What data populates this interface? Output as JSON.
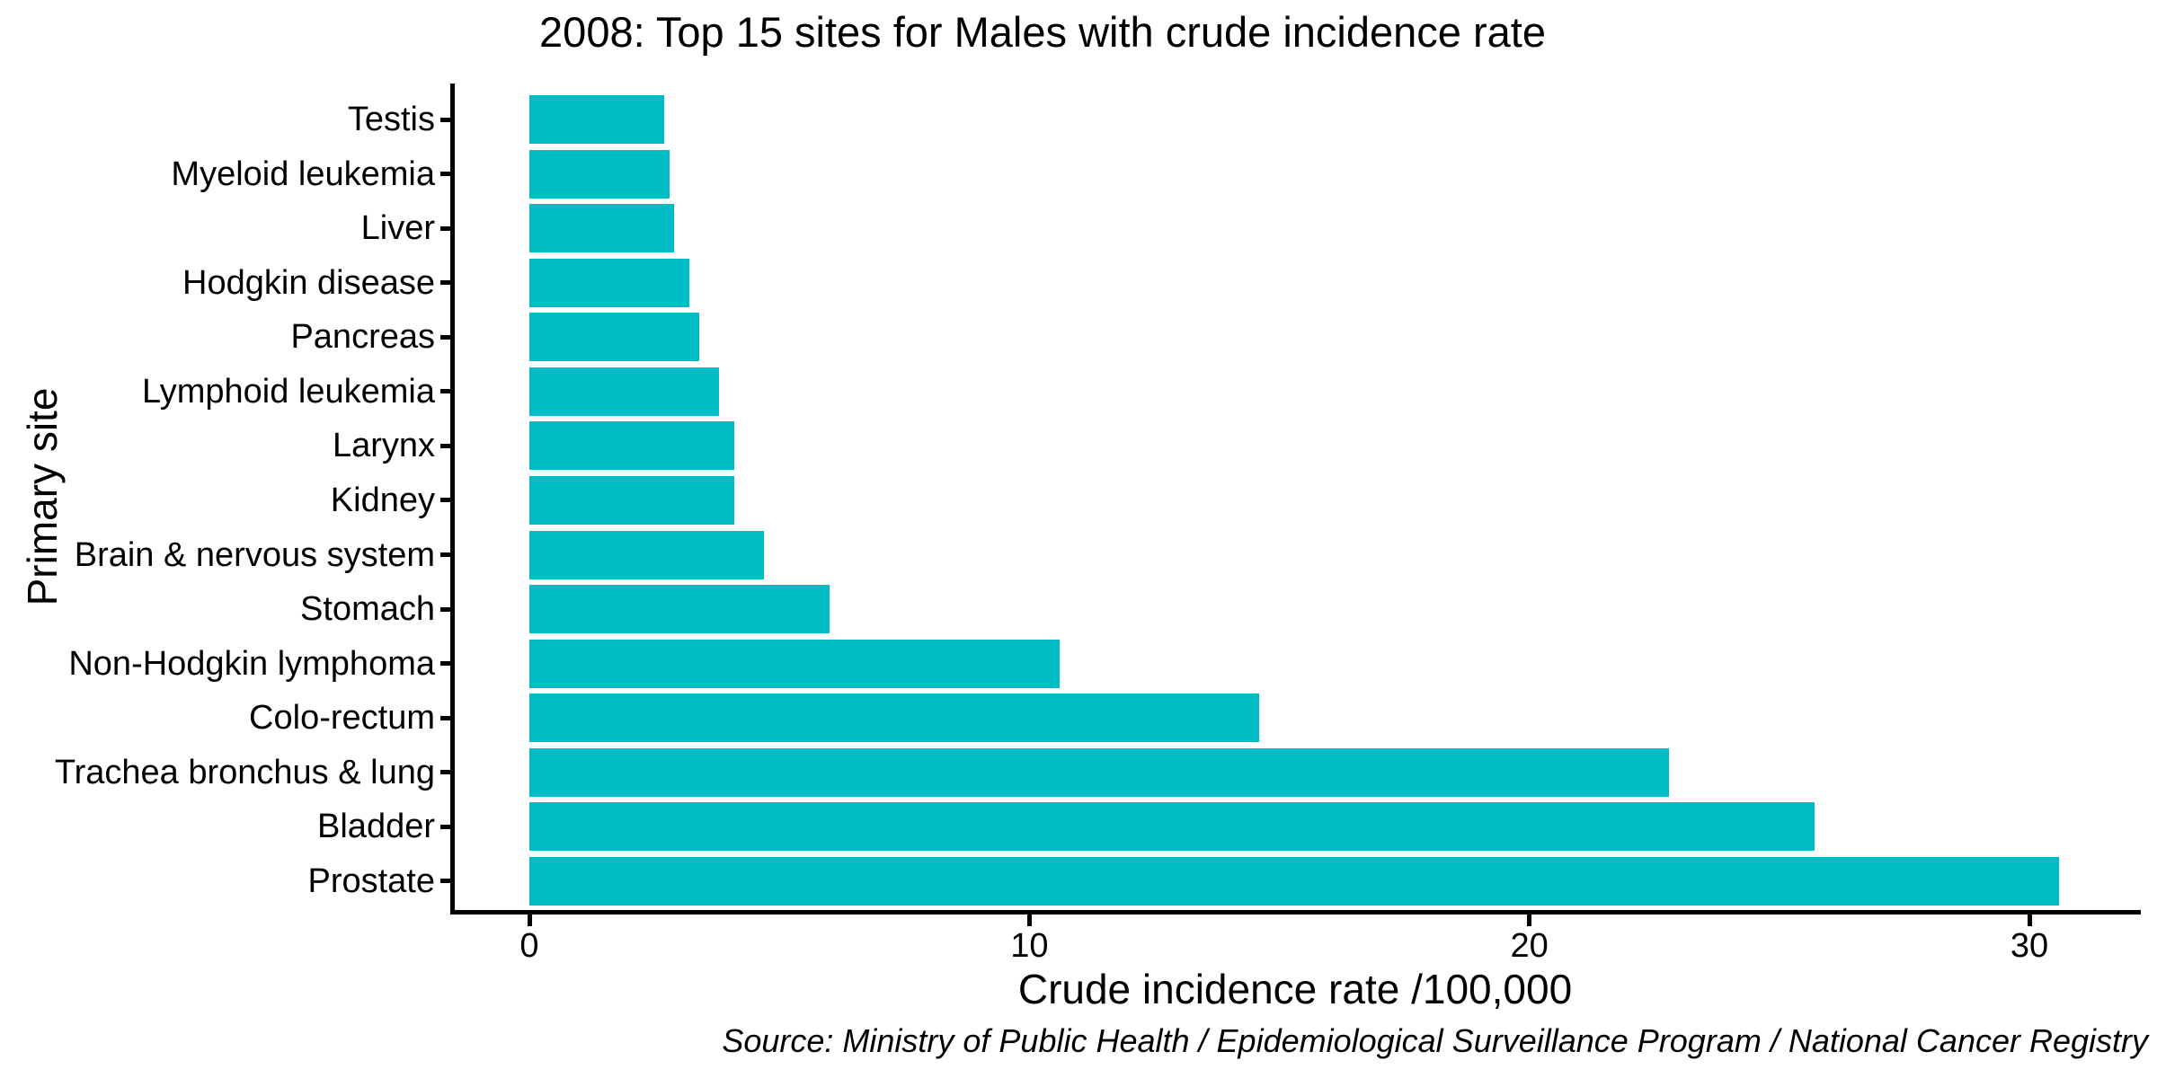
{
  "chart_data": {
    "type": "bar",
    "orientation": "horizontal",
    "title": "2008: Top 15 sites for Males with crude incidence rate",
    "xlabel": "Crude incidence rate /100,000",
    "ylabel": "Primary site",
    "source_note": "Source: Ministry of Public Health / Epidemiological Surveillance Program / National Cancer Registry",
    "categories": [
      "Testis",
      "Myeloid leukemia",
      "Liver",
      "Hodgkin disease",
      "Pancreas",
      "Lymphoid leukemia",
      "Larynx",
      "Kidney",
      "Brain & nervous system",
      "Stomach",
      "Non-Hodgkin lymphoma",
      "Colo-rectum",
      "Trachea bronchus & lung",
      "Bladder",
      "Prostate"
    ],
    "values": [
      2.7,
      2.8,
      2.9,
      3.2,
      3.4,
      3.8,
      4.1,
      4.1,
      4.7,
      6.0,
      10.6,
      14.6,
      22.8,
      25.7,
      30.6
    ],
    "xlim": [
      0,
      30
    ],
    "xticks": [
      0,
      10,
      20,
      30
    ],
    "bar_color": "#00BCC4",
    "grid": false,
    "legend": "none"
  }
}
